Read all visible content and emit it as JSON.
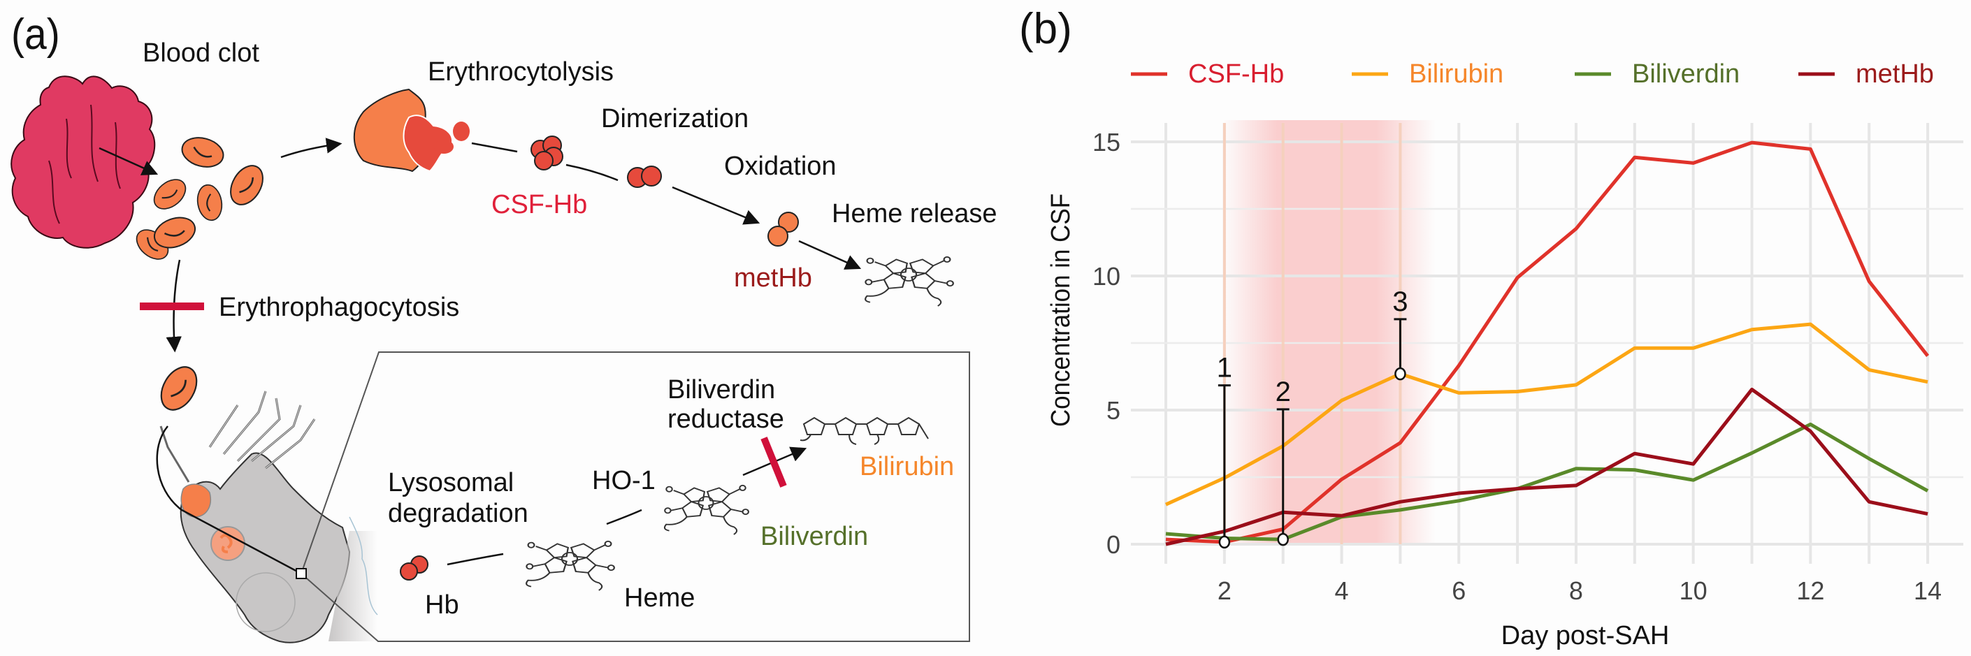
{
  "panel_a": {
    "label": "(a)",
    "steps": {
      "blood_clot": "Blood clot",
      "erythrocytolysis": "Erythrocytolysis",
      "dimerization": "Dimerization",
      "oxidation": "Oxidation",
      "heme_release": "Heme release",
      "erythrophagocytosis": "Erythrophagocytosis",
      "lysosomal_degradation_line1": "Lysosomal",
      "lysosomal_degradation_line2": "degradation",
      "ho1": "HO-1",
      "biliverdin_reductase_line1": "Biliverdin",
      "biliverdin_reductase_line2": "reductase"
    },
    "molecules": {
      "csf_hb": "CSF-Hb",
      "methb": "metHb",
      "hb": "Hb",
      "heme": "Heme",
      "biliverdin": "Biliverdin",
      "bilirubin": "Bilirubin"
    },
    "colors": {
      "clot": "#e03a62",
      "rbc": "#f57f4a",
      "hb_red": "#e64a3c",
      "inhibit": "#d0103a",
      "csf_hb_text": "#e0203a",
      "methb_text": "#9b1b1b",
      "biliverdin_text": "#55702a",
      "bilirubin_text": "#f5862a",
      "cell": "#c8c6c6"
    }
  },
  "panel_b": {
    "label": "(b)",
    "chart_data": {
      "type": "line",
      "title": "",
      "xlabel": "Day post-SAH",
      "ylabel": "Concentration in CSF",
      "x": [
        1,
        2,
        3,
        4,
        5,
        6,
        7,
        8,
        9,
        10,
        11,
        12,
        13,
        14
      ],
      "xlim": [
        1,
        14
      ],
      "ylim": [
        0,
        15
      ],
      "xticks": [
        2,
        4,
        6,
        8,
        10,
        12,
        14
      ],
      "yticks": [
        0,
        5,
        10,
        15
      ],
      "grid": true,
      "legend_position": "top",
      "series": [
        {
          "name": "CSF-Hb",
          "color": "#e0322a",
          "values": [
            0.18,
            0.08,
            0.56,
            2.42,
            3.78,
            6.66,
            9.94,
            11.76,
            14.42,
            14.21,
            14.97,
            14.73,
            9.8,
            7.02
          ]
        },
        {
          "name": "Bilirubin",
          "color": "#fca614",
          "values": [
            1.48,
            2.47,
            3.66,
            5.36,
            6.35,
            5.64,
            5.69,
            5.94,
            7.31,
            7.31,
            8.0,
            8.2,
            6.5,
            6.05
          ]
        },
        {
          "name": "Biliverdin",
          "color": "#5a8a2a",
          "values": [
            0.39,
            0.22,
            0.18,
            1.02,
            1.28,
            1.62,
            2.07,
            2.82,
            2.77,
            2.39,
            3.4,
            4.47,
            3.19,
            1.99
          ]
        },
        {
          "name": "metHb",
          "color": "#9b0e1a",
          "values": [
            0.0,
            0.48,
            1.19,
            1.06,
            1.58,
            1.9,
            2.07,
            2.19,
            3.38,
            2.99,
            5.77,
            4.21,
            1.58,
            1.13
          ]
        }
      ],
      "legend_text_colors": [
        "#d81e2f",
        "#f5862a",
        "#55702a",
        "#9b1b1b"
      ],
      "highlight_band": {
        "from_day": 2,
        "to_day": 5.6,
        "color": "#f9c6c6"
      },
      "annotations": [
        {
          "label": "1",
          "day": 2,
          "value": 0.08,
          "top": 5.92
        },
        {
          "label": "2",
          "day": 3,
          "value": 0.18,
          "top": 5.03
        },
        {
          "label": "3",
          "day": 5,
          "value": 6.35,
          "top": 8.39
        }
      ]
    }
  }
}
